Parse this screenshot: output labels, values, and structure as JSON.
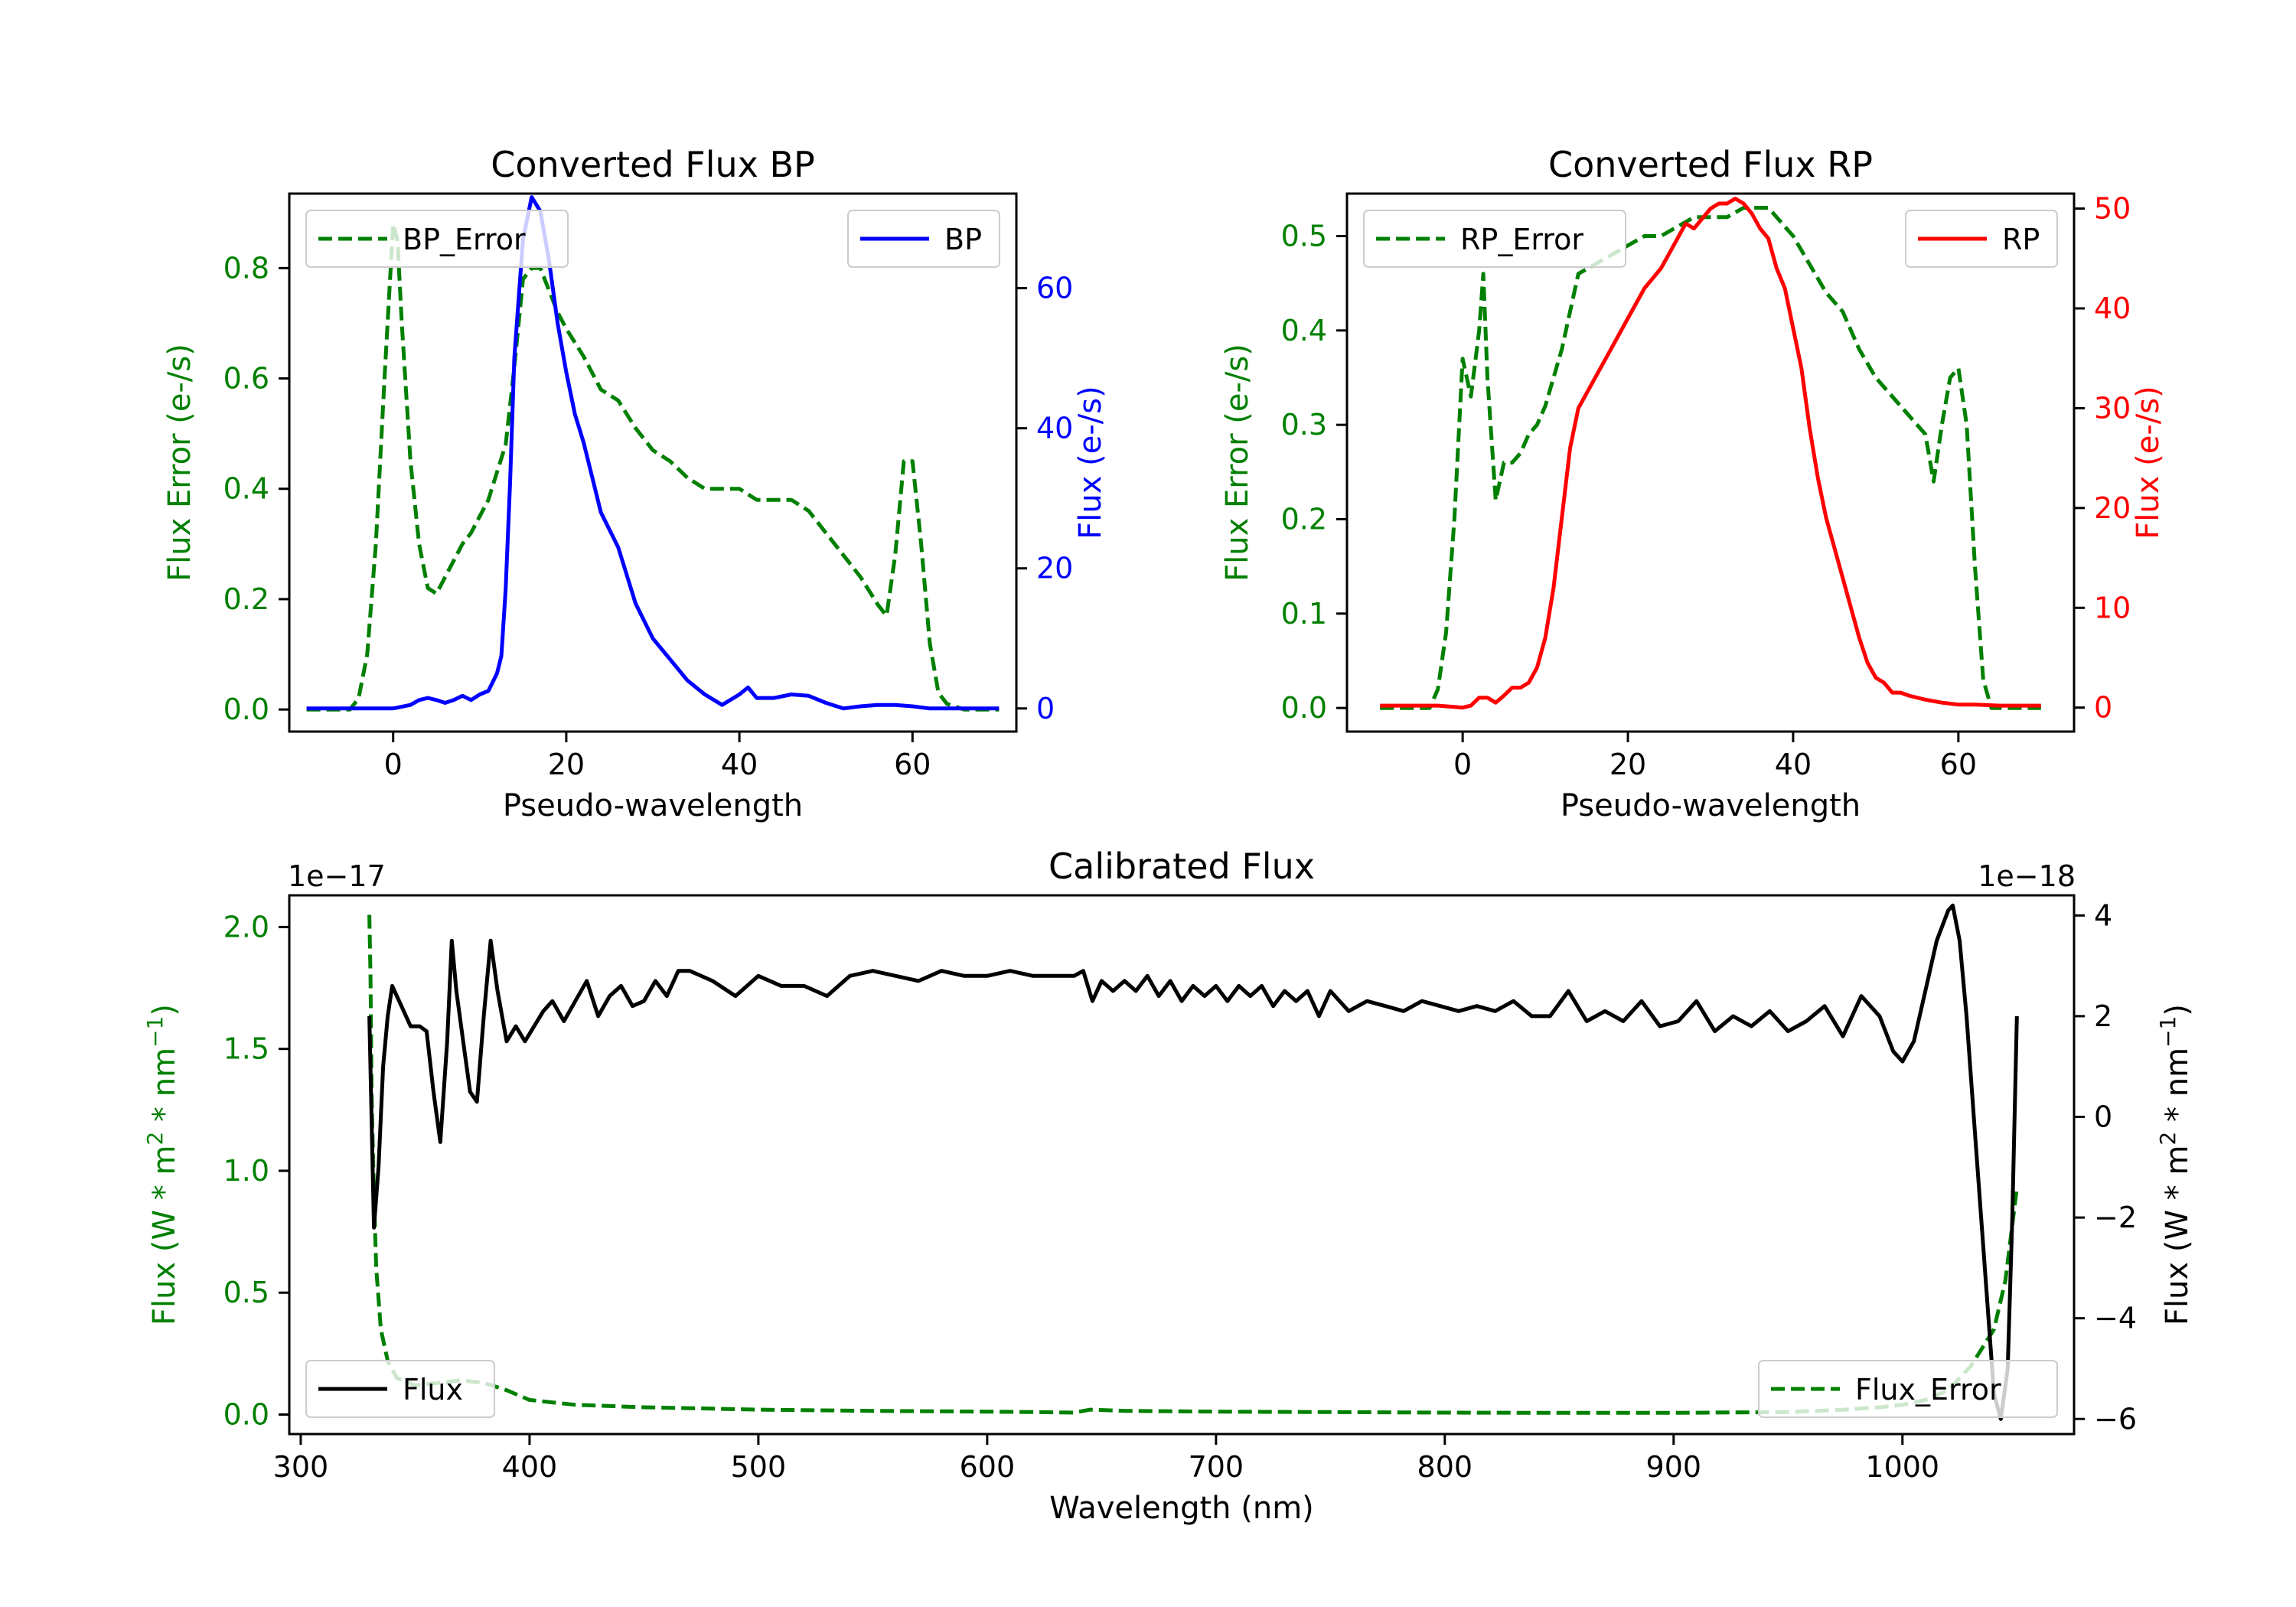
{
  "colors": {
    "green": "#008000",
    "blue": "#0000ff",
    "red": "#ff0000",
    "black": "#000000"
  },
  "chart_data": [
    {
      "type": "line",
      "title": "Converted Flux BP",
      "xlabel": "Pseudo-wavelength",
      "ylabel_left": "Flux Error (e-/s)",
      "ylabel_right": "Flux (e-/s)",
      "xlim": [
        -12,
        72
      ],
      "ylim_left": [
        -0.04,
        0.935
      ],
      "ylim_right": [
        -3.3,
        73.5
      ],
      "xticks": [
        0,
        20,
        40,
        60
      ],
      "yticks_left": [
        0.0,
        0.2,
        0.4,
        0.6,
        0.8
      ],
      "yticks_left_labels": [
        "0.0",
        "0.2",
        "0.4",
        "0.6",
        "0.8"
      ],
      "yticks_right": [
        0,
        20,
        40,
        60
      ],
      "yticks_right_labels": [
        "0",
        "20",
        "40",
        "60"
      ],
      "left_color": "green",
      "right_color": "blue",
      "legend_left": "BP_Error",
      "legend_right": "BP",
      "series": [
        {
          "name": "BP_Error",
          "axis": "left",
          "color": "green",
          "dashed": true,
          "x": [
            -10,
            -5,
            -4,
            -3,
            -2,
            -1,
            0,
            0.5,
            1,
            2,
            3,
            4,
            5,
            6,
            7,
            8,
            9,
            10,
            11,
            12,
            13,
            14,
            15,
            16,
            17,
            18,
            19,
            20,
            22,
            24,
            26,
            28,
            30,
            32,
            34,
            36,
            38,
            40,
            42,
            44,
            46,
            48,
            50,
            52,
            54,
            56,
            57,
            58,
            59,
            60,
            61,
            62,
            63,
            64,
            66,
            68,
            70
          ],
          "y": [
            0.0,
            0.0,
            0.02,
            0.1,
            0.3,
            0.6,
            0.88,
            0.85,
            0.7,
            0.45,
            0.3,
            0.22,
            0.21,
            0.24,
            0.27,
            0.3,
            0.32,
            0.35,
            0.38,
            0.43,
            0.48,
            0.62,
            0.78,
            0.8,
            0.8,
            0.76,
            0.72,
            0.69,
            0.64,
            0.58,
            0.56,
            0.51,
            0.47,
            0.45,
            0.42,
            0.4,
            0.4,
            0.4,
            0.38,
            0.38,
            0.38,
            0.36,
            0.32,
            0.28,
            0.24,
            0.19,
            0.17,
            0.28,
            0.45,
            0.45,
            0.3,
            0.12,
            0.03,
            0.01,
            0.0,
            0.0,
            0.0
          ]
        },
        {
          "name": "BP",
          "axis": "right",
          "color": "blue",
          "dashed": false,
          "x": [
            -10,
            -5,
            0,
            2,
            3,
            4,
            5,
            6,
            7,
            8,
            9,
            10,
            11,
            12,
            12.5,
            13,
            13.5,
            14,
            15,
            16,
            17,
            18,
            19,
            20,
            21,
            22,
            23,
            24,
            26,
            28,
            30,
            32,
            34,
            36,
            38,
            40,
            41,
            42,
            44,
            46,
            48,
            50,
            52,
            54,
            56,
            58,
            60,
            62,
            64,
            66,
            68,
            70
          ],
          "y": [
            0,
            0,
            0,
            0.5,
            1.2,
            1.5,
            1.2,
            0.8,
            1.2,
            1.8,
            1.2,
            2.0,
            2.5,
            5.0,
            7.5,
            17,
            32,
            50,
            67,
            73,
            71,
            64,
            55,
            48,
            42,
            38,
            33,
            28,
            23,
            15,
            10,
            7,
            4,
            2,
            0.5,
            2,
            3,
            1.5,
            1.5,
            2,
            1.8,
            0.8,
            0,
            0.3,
            0.5,
            0.5,
            0.3,
            0,
            0,
            0,
            0,
            0
          ]
        }
      ]
    },
    {
      "type": "line",
      "title": "Converted Flux RP",
      "xlabel": "Pseudo-wavelength",
      "ylabel_left": "Flux Error (e-/s)",
      "ylabel_right": "Flux (e-/s)",
      "xlim": [
        -14,
        74
      ],
      "ylim_left": [
        -0.025,
        0.545
      ],
      "ylim_right": [
        -2.4,
        51.5
      ],
      "xticks": [
        0,
        20,
        40,
        60
      ],
      "yticks_left": [
        0.0,
        0.1,
        0.2,
        0.3,
        0.4,
        0.5
      ],
      "yticks_left_labels": [
        "0.0",
        "0.1",
        "0.2",
        "0.3",
        "0.4",
        "0.5"
      ],
      "yticks_right": [
        0,
        10,
        20,
        30,
        40,
        50
      ],
      "yticks_right_labels": [
        "0",
        "10",
        "20",
        "30",
        "40",
        "50"
      ],
      "left_color": "green",
      "right_color": "red",
      "legend_left": "RP_Error",
      "legend_right": "RP",
      "series": [
        {
          "name": "RP_Error",
          "axis": "left",
          "color": "green",
          "dashed": true,
          "x": [
            -10,
            -5,
            -4,
            -3,
            -2,
            -1,
            0,
            1,
            2,
            2.5,
            3,
            4,
            5,
            6,
            7,
            8,
            9,
            10,
            12,
            14,
            16,
            18,
            20,
            22,
            24,
            26,
            28,
            30,
            32,
            34,
            36,
            37,
            38,
            40,
            42,
            44,
            46,
            48,
            50,
            52,
            54,
            55,
            56,
            57,
            58,
            59,
            60,
            61,
            62,
            63,
            64,
            66,
            70
          ],
          "y": [
            0.0,
            0.0,
            0.0,
            0.02,
            0.08,
            0.2,
            0.37,
            0.33,
            0.4,
            0.46,
            0.35,
            0.22,
            0.26,
            0.26,
            0.27,
            0.29,
            0.3,
            0.32,
            0.38,
            0.46,
            0.47,
            0.48,
            0.49,
            0.5,
            0.5,
            0.51,
            0.52,
            0.52,
            0.52,
            0.53,
            0.53,
            0.53,
            0.52,
            0.5,
            0.47,
            0.44,
            0.42,
            0.38,
            0.35,
            0.33,
            0.31,
            0.3,
            0.29,
            0.24,
            0.3,
            0.35,
            0.36,
            0.3,
            0.15,
            0.03,
            0.0,
            0.0,
            0.0
          ]
        },
        {
          "name": "RP",
          "axis": "right",
          "color": "red",
          "dashed": false,
          "x": [
            -10,
            -5,
            -3,
            0,
            1,
            2,
            3,
            4,
            5,
            6,
            7,
            8,
            9,
            10,
            11,
            12,
            13,
            14,
            15,
            16,
            18,
            20,
            22,
            24,
            25,
            26,
            27,
            28,
            29,
            30,
            31,
            32,
            33,
            34,
            35,
            36,
            37,
            38,
            39,
            40,
            41,
            42,
            43,
            44,
            45,
            46,
            47,
            48,
            49,
            50,
            51,
            52,
            53,
            54,
            56,
            58,
            60,
            62,
            65,
            70
          ],
          "y": [
            0.2,
            0.2,
            0.2,
            0,
            0.2,
            1,
            1,
            0.5,
            1.2,
            2,
            2,
            2.5,
            4,
            7,
            12,
            19,
            26,
            30,
            31.5,
            33,
            36,
            39,
            42,
            44,
            45.5,
            47,
            48.5,
            48,
            49,
            50,
            50.5,
            50.5,
            51,
            50.5,
            49.5,
            48,
            47,
            44,
            42,
            38,
            34,
            28,
            23,
            19,
            16,
            13,
            10,
            7,
            4.5,
            3,
            2.5,
            1.5,
            1.5,
            1.2,
            0.8,
            0.5,
            0.3,
            0.3,
            0.2,
            0.2
          ]
        }
      ]
    },
    {
      "type": "line",
      "title": "Calibrated Flux",
      "xlabel": "Wavelength (nm)",
      "ylabel_left": "Flux (W * m2 * nm−1)",
      "ylabel_right": "Flux (W * m2 * nm−1)",
      "xlim": [
        295,
        1075
      ],
      "ylim_left": [
        -0.08,
        2.13
      ],
      "ylim_right": [
        -6.3,
        4.4
      ],
      "xticks": [
        300,
        400,
        500,
        600,
        700,
        800,
        900,
        1000
      ],
      "yticks_left": [
        0.0,
        0.5,
        1.0,
        1.5,
        2.0
      ],
      "yticks_left_labels": [
        "0.0",
        "0.5",
        "1.0",
        "1.5",
        "2.0"
      ],
      "yticks_right": [
        -6,
        -4,
        -2,
        0,
        2,
        4
      ],
      "yticks_right_labels": [
        "−6",
        "−4",
        "−2",
        "0",
        "2",
        "4"
      ],
      "left_offset": "1e−17",
      "right_offset": "1e−18",
      "left_color": "green",
      "right_color": "black",
      "legend_left": "Flux",
      "legend_right": "Flux_Error",
      "series": [
        {
          "name": "Flux_Error",
          "axis": "left",
          "color": "green",
          "dashed": true,
          "x": [
            330,
            330.5,
            331,
            332,
            333,
            335,
            338,
            342,
            350,
            360,
            370,
            380,
            390,
            400,
            420,
            450,
            500,
            550,
            600,
            620,
            638,
            645,
            660,
            700,
            750,
            800,
            850,
            900,
            950,
            975,
            990,
            1000,
            1010,
            1020,
            1030,
            1040,
            1045,
            1050
          ],
          "y": [
            2.05,
            1.8,
            1.3,
            0.9,
            0.6,
            0.35,
            0.22,
            0.15,
            0.12,
            0.13,
            0.14,
            0.13,
            0.1,
            0.06,
            0.04,
            0.03,
            0.02,
            0.015,
            0.012,
            0.01,
            0.008,
            0.02,
            0.015,
            0.012,
            0.01,
            0.008,
            0.007,
            0.007,
            0.01,
            0.02,
            0.03,
            0.04,
            0.06,
            0.1,
            0.2,
            0.35,
            0.55,
            0.93
          ]
        },
        {
          "name": "Flux",
          "axis": "right",
          "color": "black",
          "dashed": false,
          "x": [
            330,
            332,
            334,
            336,
            338,
            340,
            344,
            348,
            352,
            355,
            358,
            361,
            364,
            366,
            368,
            371,
            374,
            377,
            380,
            383,
            386,
            390,
            394,
            398,
            402,
            406,
            410,
            415,
            420,
            425,
            430,
            435,
            440,
            445,
            450,
            455,
            460,
            465,
            470,
            480,
            490,
            500,
            510,
            520,
            530,
            540,
            550,
            560,
            570,
            580,
            590,
            600,
            610,
            620,
            630,
            638,
            642,
            646,
            650,
            655,
            660,
            665,
            670,
            675,
            680,
            685,
            690,
            695,
            700,
            705,
            710,
            715,
            720,
            725,
            730,
            735,
            740,
            745,
            750,
            758,
            766,
            774,
            782,
            790,
            798,
            806,
            814,
            822,
            830,
            838,
            846,
            854,
            862,
            870,
            878,
            886,
            894,
            902,
            910,
            918,
            926,
            934,
            942,
            950,
            958,
            966,
            974,
            982,
            990,
            996,
            1000,
            1005,
            1010,
            1015,
            1020,
            1022,
            1025,
            1028,
            1032,
            1036,
            1040,
            1043,
            1046,
            1048,
            1050
          ],
          "y": [
            2.0,
            -2.2,
            -1.0,
            1.0,
            2.0,
            2.6,
            2.2,
            1.8,
            1.8,
            1.7,
            0.5,
            -0.5,
            1.5,
            3.5,
            2.5,
            1.5,
            0.5,
            0.3,
            2.0,
            3.5,
            2.5,
            1.5,
            1.8,
            1.5,
            1.8,
            2.1,
            2.3,
            1.9,
            2.3,
            2.7,
            2.0,
            2.4,
            2.6,
            2.2,
            2.3,
            2.7,
            2.4,
            2.9,
            2.9,
            2.7,
            2.4,
            2.8,
            2.6,
            2.6,
            2.4,
            2.8,
            2.9,
            2.8,
            2.7,
            2.9,
            2.8,
            2.8,
            2.9,
            2.8,
            2.8,
            2.8,
            2.9,
            2.3,
            2.7,
            2.5,
            2.7,
            2.5,
            2.8,
            2.4,
            2.7,
            2.3,
            2.6,
            2.4,
            2.6,
            2.3,
            2.6,
            2.4,
            2.6,
            2.2,
            2.5,
            2.3,
            2.5,
            2.0,
            2.5,
            2.1,
            2.3,
            2.2,
            2.1,
            2.3,
            2.2,
            2.1,
            2.2,
            2.1,
            2.3,
            2.0,
            2.0,
            2.5,
            1.9,
            2.1,
            1.9,
            2.3,
            1.8,
            1.9,
            2.3,
            1.7,
            2.0,
            1.8,
            2.1,
            1.7,
            1.9,
            2.2,
            1.6,
            2.4,
            2.0,
            1.3,
            1.1,
            1.5,
            2.5,
            3.5,
            4.1,
            4.2,
            3.5,
            2.0,
            -0.5,
            -3.0,
            -5.5,
            -6.0,
            -5.0,
            -2.0,
            2.0
          ]
        }
      ]
    }
  ]
}
